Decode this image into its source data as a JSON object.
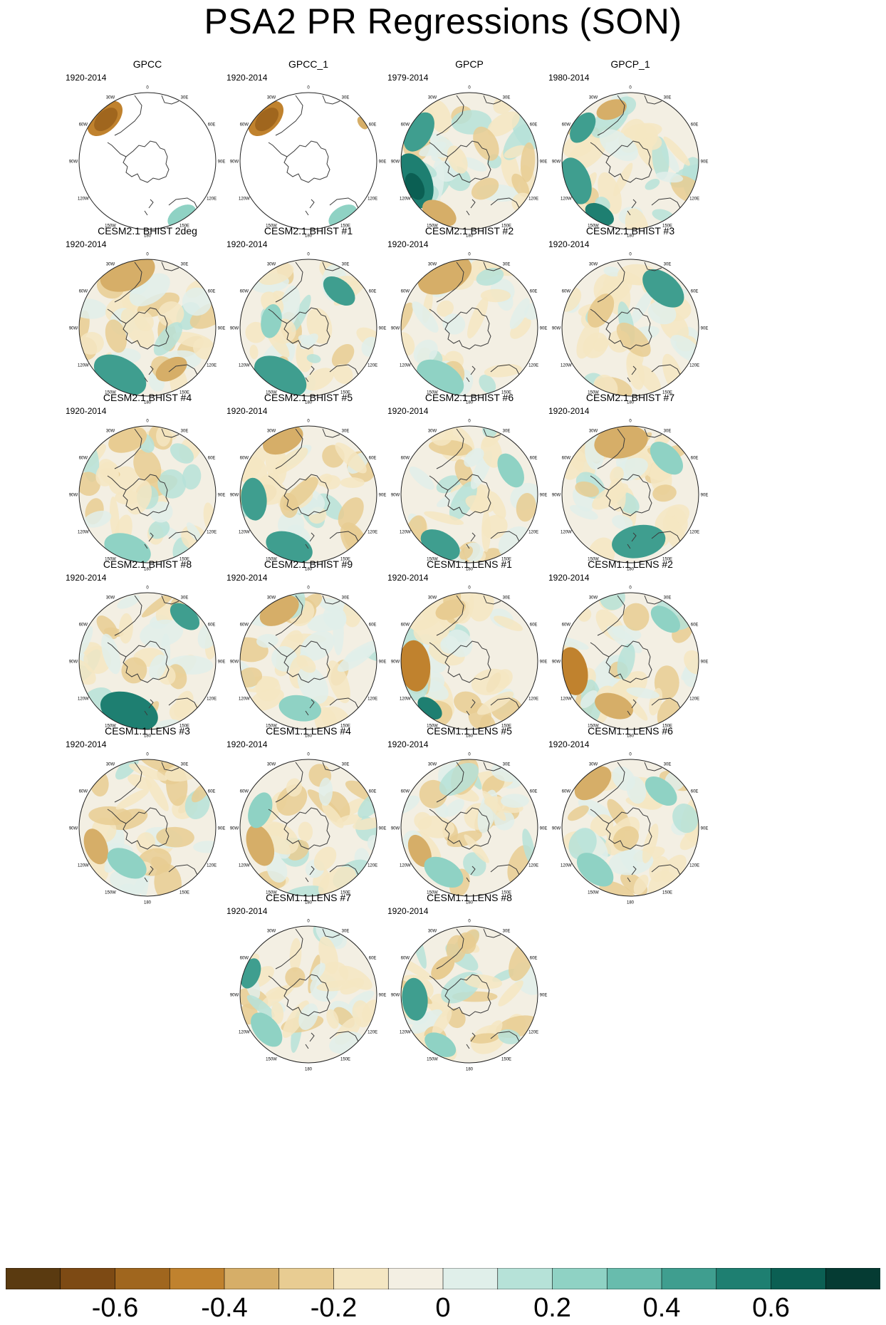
{
  "title": "PSA2 PR Regressions (SON)",
  "panels": [
    {
      "title": "GPCC",
      "years": "1920-2014"
    },
    {
      "title": "GPCC_1",
      "years": "1920-2014"
    },
    {
      "title": "GPCP",
      "years": "1979-2014"
    },
    {
      "title": "GPCP_1",
      "years": "1980-2014"
    },
    {
      "title": "CESM2.1 BHIST 2deg",
      "years": "1920-2014"
    },
    {
      "title": "CESM2.1 BHIST #1",
      "years": "1920-2014"
    },
    {
      "title": "CESM2.1 BHIST #2",
      "years": "1920-2014"
    },
    {
      "title": "CESM2.1 BHIST #3",
      "years": "1920-2014"
    },
    {
      "title": "CESM2.1 BHIST #4",
      "years": "1920-2014"
    },
    {
      "title": "CESM2.1 BHIST #5",
      "years": "1920-2014"
    },
    {
      "title": "CESM2.1 BHIST #6",
      "years": "1920-2014"
    },
    {
      "title": "CESM2.1 BHIST #7",
      "years": "1920-2014"
    },
    {
      "title": "CESM2.1 BHIST #8",
      "years": "1920-2014"
    },
    {
      "title": "CESM2.1 BHIST #9",
      "years": "1920-2014"
    },
    {
      "title": "CESM1.1 LENS #1",
      "years": "1920-2014"
    },
    {
      "title": "CESM1.1 LENS #2",
      "years": "1920-2014"
    },
    {
      "title": "CESM1.1 LENS #3",
      "years": "1920-2014"
    },
    {
      "title": "CESM1.1 LENS #4",
      "years": "1920-2014"
    },
    {
      "title": "CESM1.1 LENS #5",
      "years": "1920-2014"
    },
    {
      "title": "CESM1.1 LENS #6",
      "years": "1920-2014"
    },
    {
      "title": "CESM1.1 LENS #7",
      "years": "1920-2014"
    },
    {
      "title": "CESM1.1 LENS #8",
      "years": "1920-2014"
    }
  ],
  "lon_labels": [
    "0",
    "30E",
    "60E",
    "90E",
    "120E",
    "150E",
    "180",
    "150W",
    "120W",
    "90W",
    "60W",
    "30W"
  ],
  "colorbar": {
    "colors": [
      "#5a3a10",
      "#7d4a14",
      "#a0661e",
      "#c0822e",
      "#d6ae68",
      "#e8cc92",
      "#f4e6c2",
      "#f3efe3",
      "#e0efea",
      "#b6e2d8",
      "#8fd2c4",
      "#68bcad",
      "#3f9e8f",
      "#1e7f71",
      "#0b5f53",
      "#053b33"
    ],
    "labels": [
      "-0.6",
      "-0.4",
      "-0.2",
      "0",
      "0.2",
      "0.4",
      "0.6"
    ]
  }
}
